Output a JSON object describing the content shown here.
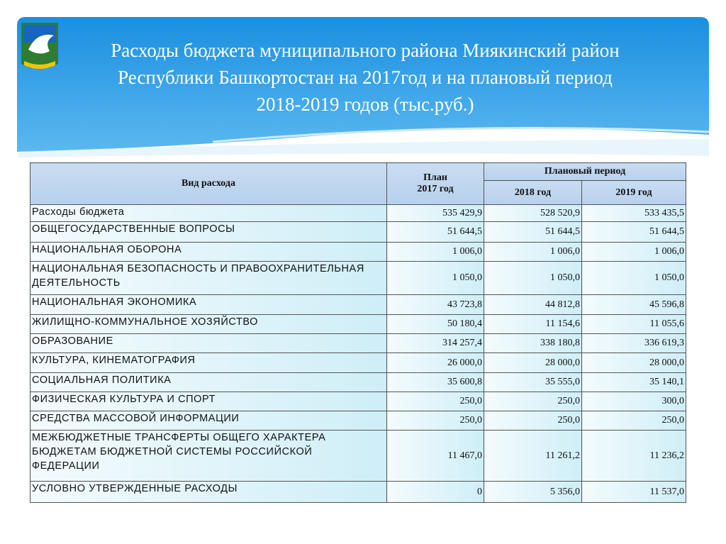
{
  "header": {
    "title_lines": [
      "Расходы бюджета муниципального района Миякинский район",
      "Республики Башкортостан на 2017год и на плановый период",
      "2018-2019 годов (тыс.руб.)"
    ]
  },
  "table": {
    "header": {
      "name": "Вид расхода",
      "plan": [
        "План",
        "2017 год"
      ],
      "period": "Плановый период",
      "years": [
        "2018 год",
        "2019 год"
      ]
    },
    "rows": [
      [
        "Расходы бюджета",
        "535 429,9",
        "528 520,9",
        "533 435,5"
      ],
      [
        "ОБЩЕГОСУДАРСТВЕННЫЕ ВОПРОСЫ",
        "51 644,5",
        "51 644,5",
        "51 644,5"
      ],
      [
        "НАЦИОНАЛЬНАЯ ОБОРОНА",
        "1 006,0",
        "1 006,0",
        "1 006,0"
      ],
      [
        "НАЦИОНАЛЬНАЯ БЕЗОПАСНОСТЬ И ПРАВООХРАНИТЕЛЬНАЯ ДЕЯТЕЛЬНОСТЬ",
        "1 050,0",
        "1 050,0",
        "1 050,0"
      ],
      [
        "НАЦИОНАЛЬНАЯ ЭКОНОМИКА",
        "43 723,8",
        "44 812,8",
        "45 596,8"
      ],
      [
        "ЖИЛИЩНО-КОММУНАЛЬНОЕ ХОЗЯЙСТВО",
        "50 180,4",
        "11 154,6",
        "11 055,6"
      ],
      [
        "ОБРАЗОВАНИЕ",
        "314 257,4",
        "338 180,8",
        "336 619,3"
      ],
      [
        "КУЛЬТУРА, КИНЕМАТОГРАФИЯ",
        "26 000,0",
        "28 000,0",
        "28 000,0"
      ],
      [
        "СОЦИАЛЬНАЯ ПОЛИТИКА",
        "35 600,8",
        "35 555,0",
        "35 140,1"
      ],
      [
        "ФИЗИЧЕСКАЯ КУЛЬТУРА И СПОРТ",
        "250,0",
        "250,0",
        "300,0"
      ],
      [
        "СРЕДСТВА МАССОВОЙ ИНФОРМАЦИИ",
        "250,0",
        "250,0",
        "250,0"
      ],
      [
        "МЕЖБЮДЖЕТНЫЕ ТРАНСФЕРТЫ ОБЩЕГО ХАРАКТЕРА БЮДЖЕТАМ БЮДЖЕТНОЙ СИСТЕМЫ РОССИЙСКОЙ ФЕДЕРАЦИИ",
        "11 467,0",
        "11 261,2",
        "11 236,2"
      ],
      [
        "УСЛОВНО УТВЕРЖДЕННЫЕ РАСХОДЫ",
        "0",
        "5 356,0",
        "11 537,0"
      ]
    ]
  }
}
